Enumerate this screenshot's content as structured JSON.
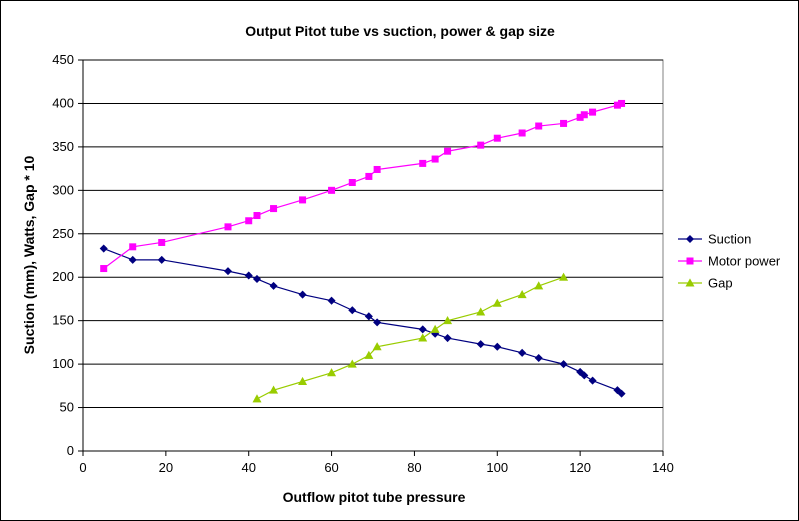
{
  "chart_data": {
    "type": "line",
    "title": "Output Pitot  tube vs suction, power & gap size",
    "xlabel": "Outflow pitot tube pressure",
    "ylabel": "Suction (mm), Watts, Gap * 10",
    "xlim": [
      0,
      140
    ],
    "ylim": [
      0,
      450
    ],
    "x_ticks": [
      "0",
      "20",
      "40",
      "60",
      "80",
      "100",
      "120",
      "140"
    ],
    "y_ticks": [
      "0",
      "50",
      "100",
      "150",
      "200",
      "250",
      "300",
      "350",
      "400",
      "450"
    ],
    "grid": true,
    "legend_position": "right",
    "series": [
      {
        "name": "Suction",
        "color": "#000080",
        "marker": "diamond",
        "points": [
          [
            5,
            233
          ],
          [
            12,
            220
          ],
          [
            19,
            220
          ],
          [
            35,
            207
          ],
          [
            40,
            202
          ],
          [
            42,
            198
          ],
          [
            46,
            190
          ],
          [
            53,
            180
          ],
          [
            60,
            173
          ],
          [
            65,
            162
          ],
          [
            69,
            155
          ],
          [
            71,
            148
          ],
          [
            82,
            140
          ],
          [
            85,
            135
          ],
          [
            88,
            130
          ],
          [
            96,
            123
          ],
          [
            100,
            120
          ],
          [
            106,
            113
          ],
          [
            110,
            107
          ],
          [
            116,
            100
          ],
          [
            120,
            91
          ],
          [
            121,
            87
          ],
          [
            123,
            81
          ],
          [
            129,
            70
          ],
          [
            130,
            66
          ]
        ]
      },
      {
        "name": "Motor power",
        "color": "#FF00FF",
        "marker": "square",
        "points": [
          [
            5,
            210
          ],
          [
            12,
            235
          ],
          [
            19,
            240
          ],
          [
            35,
            258
          ],
          [
            40,
            265
          ],
          [
            42,
            271
          ],
          [
            46,
            279
          ],
          [
            53,
            289
          ],
          [
            60,
            300
          ],
          [
            65,
            309
          ],
          [
            69,
            316
          ],
          [
            71,
            324
          ],
          [
            82,
            331
          ],
          [
            85,
            336
          ],
          [
            88,
            345
          ],
          [
            96,
            352
          ],
          [
            100,
            360
          ],
          [
            106,
            366
          ],
          [
            110,
            374
          ],
          [
            116,
            377
          ],
          [
            120,
            384
          ],
          [
            121,
            387
          ],
          [
            123,
            390
          ],
          [
            129,
            398
          ],
          [
            130,
            400
          ]
        ]
      },
      {
        "name": "Gap",
        "color": "#99CC00",
        "marker": "triangle",
        "points": [
          [
            42,
            60
          ],
          [
            46,
            70
          ],
          [
            53,
            80
          ],
          [
            60,
            90
          ],
          [
            65,
            100
          ],
          [
            69,
            110
          ],
          [
            71,
            120
          ],
          [
            82,
            130
          ],
          [
            85,
            140
          ],
          [
            88,
            150
          ],
          [
            96,
            160
          ],
          [
            100,
            170
          ],
          [
            106,
            180
          ],
          [
            110,
            190
          ],
          [
            116,
            200
          ]
        ]
      }
    ]
  }
}
